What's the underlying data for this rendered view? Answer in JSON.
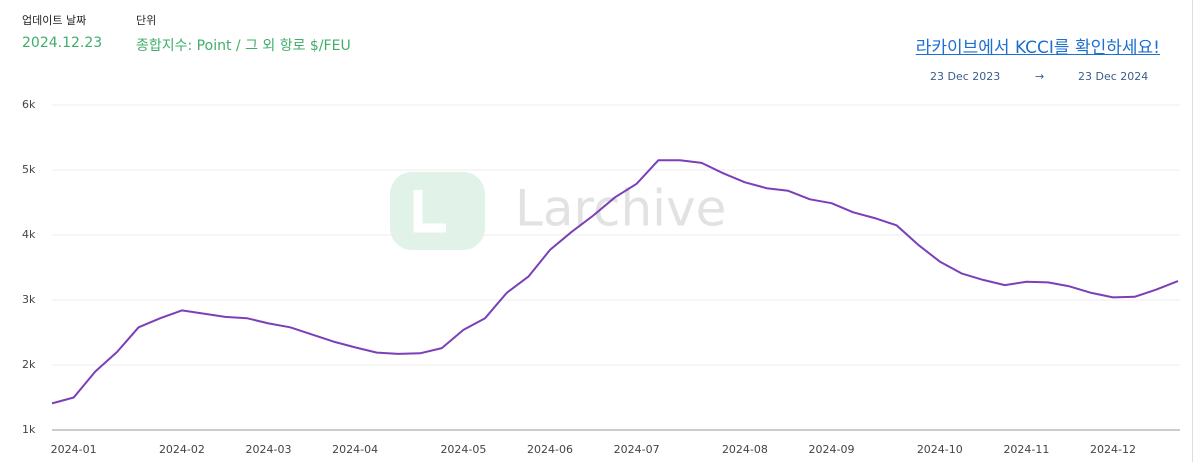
{
  "header": {
    "update_label": "업데이트 날짜",
    "update_date": "2024.12.23",
    "unit_label": "단위",
    "unit_value": "종합지수: Point / 그 외 항로 $/FEU",
    "link": "라카이브에서 KCCI를 확인하세요!",
    "range_start": "23 Dec 2023",
    "range_arrow": "→",
    "range_end": "23 Dec 2024"
  },
  "watermark": "Larchive",
  "chart_data": {
    "type": "line",
    "color": "#7b3fb8",
    "grid": true,
    "categories": [
      null,
      "2024-01",
      null,
      null,
      null,
      null,
      "2024-02",
      null,
      null,
      null,
      "2024-03",
      null,
      null,
      null,
      "2024-04",
      null,
      null,
      null,
      null,
      "2024-05",
      null,
      null,
      null,
      "2024-06",
      null,
      null,
      null,
      "2024-07",
      null,
      null,
      null,
      null,
      "2024-08",
      null,
      null,
      null,
      "2024-09",
      null,
      null,
      null,
      null,
      "2024-10",
      null,
      null,
      null,
      "2024-11",
      null,
      null,
      null,
      "2024-12",
      null,
      null,
      null
    ],
    "values": [
      1410,
      1500,
      1900,
      2200,
      2580,
      2720,
      2840,
      2790,
      2740,
      2720,
      2640,
      2580,
      2470,
      2360,
      2270,
      2190,
      2170,
      2180,
      2260,
      2540,
      2720,
      3110,
      3360,
      3770,
      4050,
      4300,
      4580,
      4790,
      5150,
      5150,
      5110,
      4950,
      4810,
      4720,
      4680,
      4550,
      4490,
      4350,
      4260,
      4150,
      3850,
      3590,
      3410,
      3310,
      3230,
      3280,
      3270,
      3210,
      3110,
      3040,
      3050,
      3160,
      3290
    ],
    "ylim": [
      1000,
      6000
    ],
    "yticks": [
      {
        "value": 1000,
        "label": "1k"
      },
      {
        "value": 2000,
        "label": "2k"
      },
      {
        "value": 3000,
        "label": "3k"
      },
      {
        "value": 4000,
        "label": "4k"
      },
      {
        "value": 5000,
        "label": "5k"
      },
      {
        "value": 6000,
        "label": "6k"
      }
    ]
  }
}
